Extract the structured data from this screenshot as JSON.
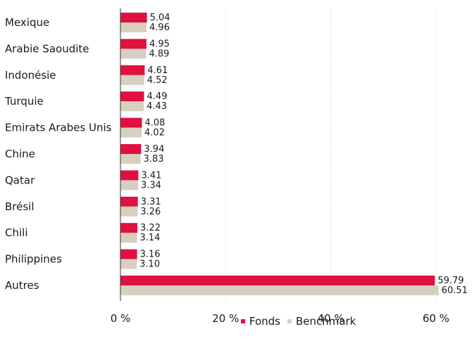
{
  "chart_data": {
    "type": "bar",
    "orientation": "horizontal",
    "categories": [
      "Mexique",
      "Arabie Saoudite",
      "Indonésie",
      "Turquie",
      "Emirats Arabes Unis",
      "Chine",
      "Qatar",
      "Brésil",
      "Chili",
      "Philippines",
      "Autres"
    ],
    "series": [
      {
        "name": "Fonds",
        "color": "#e0103f",
        "values": [
          5.04,
          4.95,
          4.61,
          4.49,
          4.08,
          3.94,
          3.41,
          3.31,
          3.22,
          3.16,
          59.79
        ],
        "labels": [
          "5.04",
          "4.95",
          "4.61",
          "4.49",
          "4.08",
          "3.94",
          "3.41",
          "3.31",
          "3.22",
          "3.16",
          "59.79"
        ]
      },
      {
        "name": "Benchmark",
        "color": "#d7cfc0",
        "values": [
          4.96,
          4.89,
          4.52,
          4.43,
          4.02,
          3.83,
          3.34,
          3.26,
          3.14,
          3.1,
          60.51
        ],
        "labels": [
          "4.96",
          "4.89",
          "4.52",
          "4.43",
          "4.02",
          "3.83",
          "3.34",
          "3.26",
          "3.14",
          "3.10",
          "60.51"
        ]
      }
    ],
    "xticks": [
      0,
      20,
      40,
      60
    ],
    "xtick_labels": [
      "0 %",
      "20 %",
      "40 %",
      "60 %"
    ],
    "xlim": [
      0,
      60
    ],
    "grid": true,
    "legend_position": "bottom-center"
  }
}
